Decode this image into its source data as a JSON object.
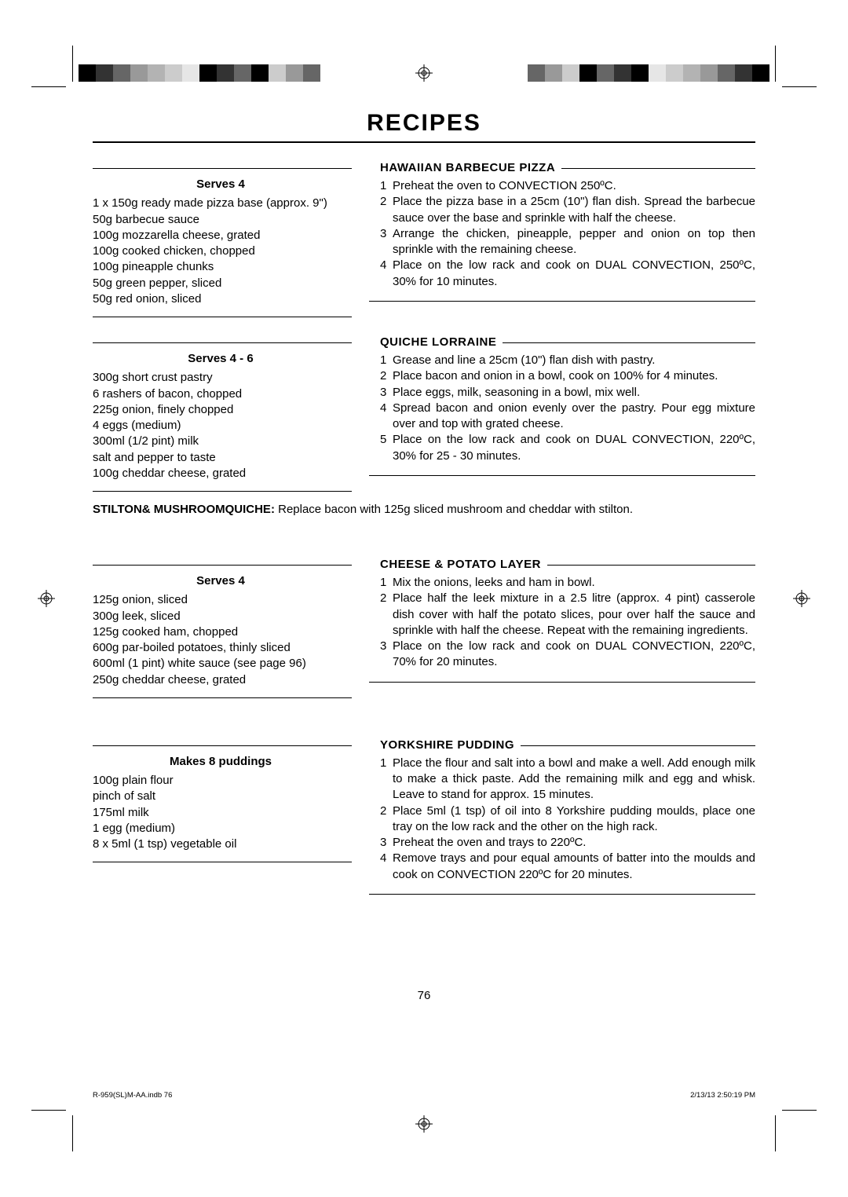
{
  "page_title": "RECIPES",
  "page_number": "76",
  "footer_left": "R-959(SL)M-AA.indb   76",
  "footer_right": "2/13/13   2:50:19 PM",
  "colorbar_swatches": [
    "#000000",
    "#333333",
    "#666666",
    "#999999",
    "#b3b3b3",
    "#cccccc",
    "#e6e6e6",
    "#000000",
    "#333333",
    "#666666",
    "#000000",
    "#cccccc",
    "#999999",
    "#666666"
  ],
  "recipes": [
    {
      "title": "HAWAIIAN BARBECUE PIZZA",
      "serves": "Serves 4",
      "ingredients": [
        "1 x 150g ready made pizza base (approx. 9\")",
        "50g barbecue sauce",
        "100g mozzarella cheese, grated",
        "100g cooked chicken, chopped",
        "100g pineapple chunks",
        "50g green pepper, sliced",
        "50g red onion, sliced"
      ],
      "steps": [
        "Preheat the oven to CONVECTION 250ºC.",
        "Place the pizza base in a 25cm (10\") flan dish. Spread the barbecue sauce over the base and sprinkle with half the cheese.",
        "Arrange the chicken, pineapple, pepper and onion on top then sprinkle with the remaining cheese.",
        "Place on the low rack and cook on DUAL CONVECTION, 250ºC, 30% for 10 minutes."
      ]
    },
    {
      "title": "QUICHE LORRAINE",
      "serves": "Serves 4 - 6",
      "ingredients": [
        "300g short crust pastry",
        "6 rashers of bacon, chopped",
        "225g onion, finely chopped",
        "4 eggs (medium)",
        "300ml (1/2 pint) milk",
        "salt and pepper to taste",
        "100g cheddar cheese, grated"
      ],
      "steps": [
        "Grease and line a 25cm (10\") flan dish with pastry.",
        "Place bacon and onion in a bowl, cook on 100% for 4 minutes.",
        "Place eggs, milk, seasoning in a bowl, mix well.",
        "Spread bacon and onion evenly over the pastry. Pour egg mixture over and top with grated cheese.",
        "Place on the low rack and cook on DUAL CONVECTION, 220ºC, 30% for 25 - 30 minutes."
      ],
      "variant_label": "STILTON& MUSHROOMQUICHE:",
      "variant_text": " Replace bacon with 125g sliced mushroom and cheddar with stilton."
    },
    {
      "title": "CHEESE & POTATO LAYER",
      "serves": "Serves 4",
      "ingredients": [
        "125g onion, sliced",
        "300g leek, sliced",
        "125g cooked ham, chopped",
        "600g par-boiled potatoes, thinly sliced",
        "600ml (1 pint) white sauce (see page 96)",
        "250g cheddar cheese, grated"
      ],
      "steps": [
        "Mix the onions, leeks and ham in bowl.",
        "Place half the leek mixture in a 2.5 litre (approx. 4 pint) casserole dish cover with half the potato slices, pour over half the sauce and sprinkle with half the cheese. Repeat with the remaining ingredients.",
        "Place on the low rack and cook on DUAL CONVECTION, 220ºC, 70% for 20 minutes."
      ]
    },
    {
      "title": "YORKSHIRE PUDDING",
      "serves": "Makes 8 puddings",
      "ingredients": [
        "100g plain flour",
        "pinch of salt",
        "175ml milk",
        "1 egg (medium)",
        "8 x 5ml (1 tsp) vegetable oil"
      ],
      "steps": [
        "Place the flour and salt into a bowl and make a well. Add enough milk to make a thick paste. Add the remaining milk and egg and whisk. Leave to stand for approx. 15 minutes.",
        "Place 5ml (1 tsp) of oil into 8 Yorkshire pudding moulds, place one tray on the low rack and the other on the high rack.",
        "Preheat the oven and trays to 220ºC.",
        "Remove trays and pour equal amounts of batter into the moulds and cook on CONVECTION 220ºC for 20 minutes."
      ]
    }
  ]
}
